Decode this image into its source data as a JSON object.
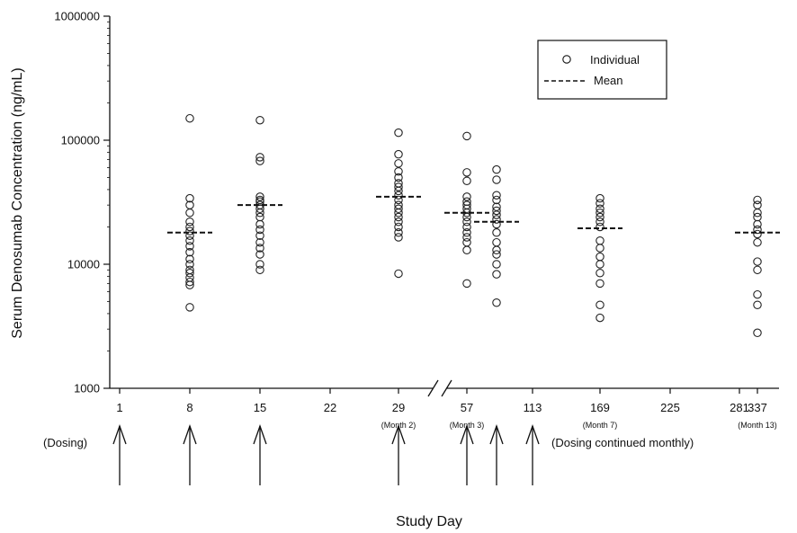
{
  "chart_data": {
    "type": "scatter",
    "title": "",
    "xlabel": "Study Day",
    "ylabel": "Serum Denosumab Concentration (ng/mL)",
    "y_scale": "log",
    "ylim": [
      1000,
      1000000
    ],
    "y_ticks": [
      "1000",
      "10000",
      "100000",
      "1000000"
    ],
    "x_ticks": [
      {
        "label": "1",
        "sub": ""
      },
      {
        "label": "8",
        "sub": ""
      },
      {
        "label": "15",
        "sub": ""
      },
      {
        "label": "22",
        "sub": ""
      },
      {
        "label": "29",
        "sub": "(Month 2)"
      },
      {
        "label": "57",
        "sub": "(Month 3)"
      },
      {
        "label": "113",
        "sub": ""
      },
      {
        "label": "169",
        "sub": "(Month 7)"
      },
      {
        "label": "225",
        "sub": ""
      },
      {
        "label": "281",
        "sub": ""
      },
      {
        "label": "337",
        "sub": "(Month 13)"
      }
    ],
    "axis_break": "between 29 and 57",
    "legend": {
      "placement": "top-right",
      "entries": [
        {
          "label": "Individual",
          "marker": "open-circle"
        },
        {
          "label": "Mean",
          "marker": "dashed-line"
        }
      ]
    },
    "groups": [
      {
        "day": "8",
        "mean": 18000,
        "individual": [
          150000,
          34000,
          30000,
          26000,
          22000,
          20000,
          18500,
          17000,
          15500,
          14000,
          12500,
          11000,
          10000,
          9000,
          8500,
          7800,
          7200,
          6800,
          4500
        ]
      },
      {
        "day": "15",
        "mean": 30000,
        "individual": [
          145000,
          73000,
          68000,
          35000,
          33000,
          32000,
          30000,
          28000,
          26000,
          24000,
          21000,
          19000,
          17000,
          15000,
          13500,
          12000,
          10000,
          9000
        ]
      },
      {
        "day": "29",
        "mean": 35000,
        "individual": [
          115000,
          77000,
          65000,
          56000,
          50000,
          45000,
          42000,
          39000,
          36000,
          33000,
          30000,
          28000,
          26000,
          24000,
          22000,
          20000,
          18000,
          16500,
          8400
        ]
      },
      {
        "day": "57",
        "mean": 26000,
        "individual": [
          108000,
          55000,
          47000,
          35000,
          32000,
          30000,
          28000,
          26000,
          24000,
          22000,
          20000,
          18000,
          16500,
          15000,
          13000,
          7000
        ]
      },
      {
        "day": "85",
        "mean": 22000,
        "individual": [
          58000,
          48000,
          36000,
          33000,
          29000,
          27000,
          25000,
          23000,
          21000,
          18000,
          15000,
          13000,
          12000,
          10000,
          8300,
          4900
        ]
      },
      {
        "day": "169",
        "mean": 19500,
        "individual": [
          34000,
          31000,
          28000,
          26000,
          24000,
          22000,
          20000,
          15500,
          13500,
          11500,
          10000,
          8500,
          7000,
          4700,
          3700
        ]
      },
      {
        "day": "337",
        "mean": 18000,
        "individual": [
          33000,
          30000,
          26000,
          24000,
          21000,
          19000,
          17500,
          15000,
          10500,
          9000,
          5700,
          4700,
          2800
        ]
      }
    ],
    "dosing": {
      "label_left": "(Dosing)",
      "label_right": "(Dosing continued monthly)",
      "arrow_days": [
        "1",
        "8",
        "15",
        "29",
        "57",
        "85",
        "113"
      ]
    }
  }
}
